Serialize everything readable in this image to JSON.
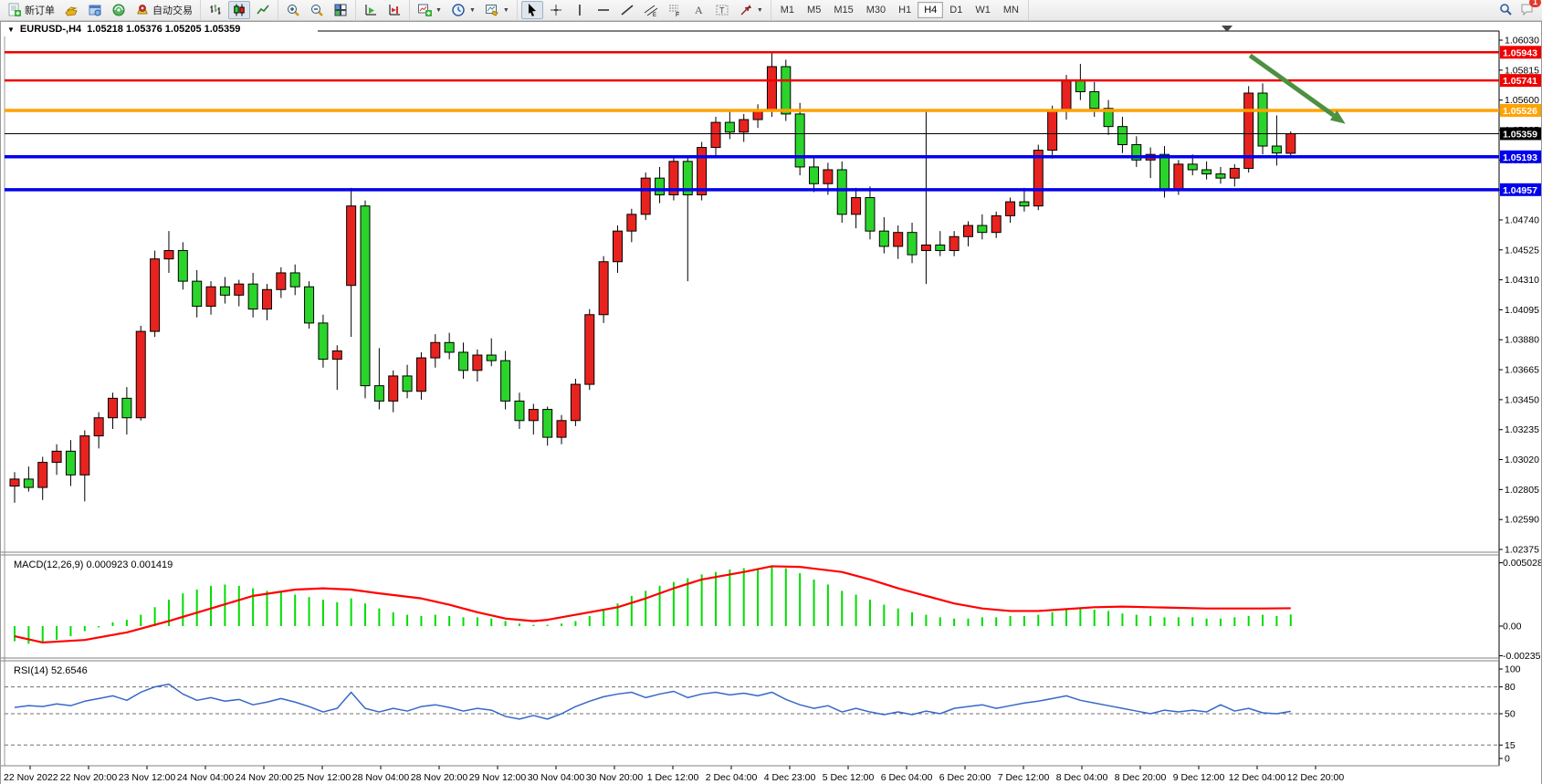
{
  "toolbar": {
    "new_order_label": "新订单",
    "autotrading_label": "自动交易",
    "left_icons": [
      "new-order-icon",
      "market-watch-icon",
      "terminal-icon",
      "navigator-icon",
      "autotrading-icon"
    ],
    "chart_type_icons": [
      "bar-chart-icon",
      "candlestick-icon",
      "line-chart-icon"
    ],
    "active_chart_type": "candlestick-icon",
    "zoom_icons": [
      "zoom-in-icon",
      "zoom-out-icon",
      "tile-windows-icon"
    ],
    "scroll_icons": [
      "auto-scroll-icon",
      "chart-shift-icon"
    ],
    "dropdown_icons": [
      "new-chart-icon",
      "period-icon",
      "template-icon"
    ],
    "draw_icons": [
      "cursor-icon",
      "crosshair-icon",
      "vertical-line-icon",
      "horizontal-line-icon",
      "trend-line-icon",
      "channel-icon",
      "fibonacci-icon",
      "text-icon",
      "text-label-icon",
      "arrows-icon"
    ],
    "active_draw_icon": "cursor-icon",
    "timeframes": [
      "M1",
      "M5",
      "M15",
      "M30",
      "H1",
      "H4",
      "D1",
      "W1",
      "MN"
    ],
    "active_timeframe": "H4",
    "notification_badge": "1"
  },
  "chart": {
    "title_symbol": "EURUSD-,H4",
    "title_ohlc": "1.05218 1.05376 1.05205 1.05359"
  },
  "chart_data": {
    "type": "candlestick",
    "symbol": "EURUSD-",
    "period": "H4",
    "bull_color": "#e8231f",
    "bear_color": "#2bd42b",
    "wick_color": "#000000",
    "current_price": "1.05359",
    "price_ticks": [
      "1.06030",
      "1.05815",
      "1.05600",
      "1.05385",
      "1.05170",
      "1.04955",
      "1.04740",
      "1.04525",
      "1.04310",
      "1.04095",
      "1.03880",
      "1.03665",
      "1.03450",
      "1.03235",
      "1.03020",
      "1.02805",
      "1.02590",
      "1.02375"
    ],
    "hlines": [
      {
        "price": 1.05943,
        "label": "1.05943",
        "color": "#f00000",
        "width": 2.5
      },
      {
        "price": 1.05741,
        "label": "1.05741",
        "color": "#f00000",
        "width": 2.5
      },
      {
        "price": 1.05526,
        "label": "1.05526",
        "color": "#ffa200",
        "width": 3.5
      },
      {
        "price": 1.05359,
        "label": "1.05359",
        "color": "#000000",
        "width": 1
      },
      {
        "price": 1.05193,
        "label": "1.05193",
        "color": "#0000ee",
        "width": 3.5
      },
      {
        "price": 1.04957,
        "label": "1.04957",
        "color": "#0000ee",
        "width": 3.5
      }
    ],
    "arrow": {
      "from_index": 88.1,
      "from_price": 1.0592,
      "to_index": 94.9,
      "to_price": 1.0543,
      "color": "#4c9141"
    },
    "candles": [
      [
        1.0283,
        1.0293,
        1.0271,
        1.0288
      ],
      [
        1.0288,
        1.0297,
        1.0279,
        1.0282
      ],
      [
        1.0282,
        1.0304,
        1.0273,
        1.03
      ],
      [
        1.03,
        1.0313,
        1.0291,
        1.0308
      ],
      [
        1.0308,
        1.0316,
        1.0283,
        1.0291
      ],
      [
        1.0291,
        1.0323,
        1.0272,
        1.0319
      ],
      [
        1.0319,
        1.0336,
        1.031,
        1.0332
      ],
      [
        1.0332,
        1.035,
        1.0324,
        1.0346
      ],
      [
        1.0346,
        1.0354,
        1.032,
        1.0332
      ],
      [
        1.0332,
        1.0398,
        1.033,
        1.0394
      ],
      [
        1.0394,
        1.0452,
        1.039,
        1.0446
      ],
      [
        1.0446,
        1.0466,
        1.0436,
        1.0452
      ],
      [
        1.0452,
        1.0458,
        1.0424,
        1.043
      ],
      [
        1.043,
        1.0438,
        1.0404,
        1.0412
      ],
      [
        1.0412,
        1.043,
        1.0406,
        1.0426
      ],
      [
        1.0426,
        1.0433,
        1.0414,
        1.042
      ],
      [
        1.042,
        1.0431,
        1.0412,
        1.0428
      ],
      [
        1.0428,
        1.0436,
        1.0404,
        1.041
      ],
      [
        1.041,
        1.0428,
        1.0402,
        1.0424
      ],
      [
        1.0424,
        1.044,
        1.0418,
        1.0436
      ],
      [
        1.0436,
        1.0442,
        1.042,
        1.0426
      ],
      [
        1.0426,
        1.043,
        1.0396,
        1.04
      ],
      [
        1.04,
        1.0406,
        1.0368,
        1.0374
      ],
      [
        1.0374,
        1.0384,
        1.0352,
        1.038
      ],
      [
        1.0427,
        1.0497,
        1.039,
        1.0484
      ],
      [
        1.0484,
        1.0488,
        1.0346,
        1.0355
      ],
      [
        1.0355,
        1.0382,
        1.0338,
        1.0344
      ],
      [
        1.0344,
        1.0366,
        1.0336,
        1.0362
      ],
      [
        1.0362,
        1.037,
        1.0346,
        1.0351
      ],
      [
        1.0351,
        1.0379,
        1.0345,
        1.0375
      ],
      [
        1.0375,
        1.0392,
        1.0368,
        1.0386
      ],
      [
        1.0386,
        1.0393,
        1.0374,
        1.0379
      ],
      [
        1.0379,
        1.0386,
        1.036,
        1.0366
      ],
      [
        1.0366,
        1.0381,
        1.0358,
        1.0377
      ],
      [
        1.0377,
        1.0389,
        1.0369,
        1.0373
      ],
      [
        1.0373,
        1.038,
        1.0338,
        1.0344
      ],
      [
        1.0344,
        1.035,
        1.0324,
        1.033
      ],
      [
        1.033,
        1.0342,
        1.032,
        1.0338
      ],
      [
        1.0338,
        1.034,
        1.0312,
        1.0318
      ],
      [
        1.0318,
        1.0334,
        1.0313,
        1.033
      ],
      [
        1.033,
        1.036,
        1.0326,
        1.0356
      ],
      [
        1.0356,
        1.041,
        1.0352,
        1.0406
      ],
      [
        1.0406,
        1.0448,
        1.04,
        1.0444
      ],
      [
        1.0444,
        1.047,
        1.0436,
        1.0466
      ],
      [
        1.0466,
        1.0482,
        1.0458,
        1.0478
      ],
      [
        1.0478,
        1.0508,
        1.0474,
        1.0504
      ],
      [
        1.0504,
        1.0512,
        1.0486,
        1.0492
      ],
      [
        1.0492,
        1.052,
        1.0488,
        1.0516
      ],
      [
        1.0516,
        1.052,
        1.043,
        1.0492
      ],
      [
        1.0492,
        1.053,
        1.0488,
        1.0526
      ],
      [
        1.0526,
        1.0548,
        1.052,
        1.0544
      ],
      [
        1.0544,
        1.0552,
        1.0532,
        1.0537
      ],
      [
        1.0537,
        1.055,
        1.053,
        1.0546
      ],
      [
        1.0546,
        1.0557,
        1.054,
        1.0553
      ],
      [
        1.0553,
        1.0595,
        1.0548,
        1.0584
      ],
      [
        1.0584,
        1.0589,
        1.0545,
        1.055
      ],
      [
        1.055,
        1.0558,
        1.0506,
        1.0512
      ],
      [
        1.0512,
        1.052,
        1.0494,
        1.05
      ],
      [
        1.05,
        1.0515,
        1.0492,
        1.051
      ],
      [
        1.051,
        1.0516,
        1.0472,
        1.0478
      ],
      [
        1.0478,
        1.0497,
        1.0468,
        1.049
      ],
      [
        1.049,
        1.0498,
        1.046,
        1.0466
      ],
      [
        1.0466,
        1.0476,
        1.045,
        1.0455
      ],
      [
        1.0455,
        1.047,
        1.0446,
        1.0465
      ],
      [
        1.0465,
        1.0472,
        1.0443,
        1.0449
      ],
      [
        1.0452,
        1.0553,
        1.0428,
        1.0456
      ],
      [
        1.0456,
        1.0466,
        1.0448,
        1.0452
      ],
      [
        1.0452,
        1.0466,
        1.0448,
        1.0462
      ],
      [
        1.0462,
        1.0473,
        1.0455,
        1.047
      ],
      [
        1.047,
        1.0478,
        1.046,
        1.0465
      ],
      [
        1.0465,
        1.048,
        1.0461,
        1.0477
      ],
      [
        1.0477,
        1.049,
        1.0472,
        1.0487
      ],
      [
        1.0487,
        1.0497,
        1.048,
        1.0484
      ],
      [
        1.0484,
        1.0528,
        1.0481,
        1.0524
      ],
      [
        1.0524,
        1.0556,
        1.0518,
        1.0552
      ],
      [
        1.0552,
        1.0578,
        1.0546,
        1.0574
      ],
      [
        1.0574,
        1.0586,
        1.056,
        1.0566
      ],
      [
        1.0566,
        1.0573,
        1.0548,
        1.0554
      ],
      [
        1.0554,
        1.056,
        1.0535,
        1.0541
      ],
      [
        1.0541,
        1.0548,
        1.0522,
        1.0528
      ],
      [
        1.0528,
        1.0534,
        1.0512,
        1.0517
      ],
      [
        1.0517,
        1.0526,
        1.0504,
        1.0521
      ],
      [
        1.0521,
        1.0527,
        1.049,
        1.0496
      ],
      [
        1.0496,
        1.0517,
        1.0492,
        1.0514
      ],
      [
        1.0514,
        1.0521,
        1.0506,
        1.051
      ],
      [
        1.051,
        1.0516,
        1.0503,
        1.0507
      ],
      [
        1.0507,
        1.0512,
        1.05,
        1.0504
      ],
      [
        1.0504,
        1.0514,
        1.0498,
        1.0511
      ],
      [
        1.0511,
        1.057,
        1.0508,
        1.0565
      ],
      [
        1.0565,
        1.0572,
        1.0521,
        1.0527
      ],
      [
        1.0527,
        1.0549,
        1.0513,
        1.0522
      ],
      [
        1.05218,
        1.05376,
        1.05205,
        1.05359
      ]
    ],
    "macd": {
      "label": "MACD(12,26,9)",
      "values_text": "0.000923 0.001419",
      "hist_color": "#00dd00",
      "signal_color": "#ff0000",
      "ticks": [
        "0.005028",
        "0.00",
        "-0.002353"
      ],
      "histogram": [
        -0.0012,
        -0.0014,
        -0.0013,
        -0.0011,
        -0.0008,
        -0.0004,
        -0.0001,
        0.0003,
        0.0005,
        0.0009,
        0.0015,
        0.0021,
        0.0026,
        0.0029,
        0.0032,
        0.0033,
        0.0032,
        0.003,
        0.0028,
        0.0027,
        0.0025,
        0.0023,
        0.0021,
        0.0019,
        0.0022,
        0.0018,
        0.0014,
        0.0011,
        0.0009,
        0.0008,
        0.0009,
        0.0008,
        0.0007,
        0.0007,
        0.0006,
        0.0004,
        0.0002,
        0.0001,
        0.0001,
        0.0002,
        0.0004,
        0.0008,
        0.0013,
        0.0018,
        0.0024,
        0.0028,
        0.0032,
        0.0035,
        0.0038,
        0.0041,
        0.0043,
        0.0045,
        0.0046,
        0.0046,
        0.0048,
        0.0046,
        0.0042,
        0.0037,
        0.0033,
        0.0028,
        0.0025,
        0.0021,
        0.0017,
        0.0014,
        0.0011,
        0.0009,
        0.0007,
        0.0006,
        0.0006,
        0.0007,
        0.0007,
        0.0008,
        0.0008,
        0.0009,
        0.0011,
        0.0013,
        0.0014,
        0.0013,
        0.0012,
        0.001,
        0.0009,
        0.0008,
        0.0007,
        0.0007,
        0.0007,
        0.0006,
        0.0006,
        0.0007,
        0.0008,
        0.0009,
        0.0008,
        0.000923
      ],
      "signal": [
        [
          0,
          -0.0008
        ],
        [
          2,
          -0.0013
        ],
        [
          5,
          -0.0011
        ],
        [
          8,
          -0.0005
        ],
        [
          11,
          0.0004
        ],
        [
          14,
          0.0014
        ],
        [
          17,
          0.0024
        ],
        [
          20,
          0.0029
        ],
        [
          22,
          0.003
        ],
        [
          24,
          0.0029
        ],
        [
          26,
          0.0026
        ],
        [
          29,
          0.0022
        ],
        [
          31,
          0.0017
        ],
        [
          33,
          0.0011
        ],
        [
          35,
          0.0006
        ],
        [
          37,
          0.0004
        ],
        [
          38,
          0.0005
        ],
        [
          40,
          0.0009
        ],
        [
          43,
          0.0015
        ],
        [
          45,
          0.0022
        ],
        [
          47,
          0.003
        ],
        [
          49,
          0.0037
        ],
        [
          52,
          0.0043
        ],
        [
          54,
          0.00475
        ],
        [
          56,
          0.0047
        ],
        [
          59,
          0.0043
        ],
        [
          61,
          0.0037
        ],
        [
          63,
          0.003
        ],
        [
          65,
          0.0024
        ],
        [
          67,
          0.0018
        ],
        [
          69,
          0.0014
        ],
        [
          71,
          0.0012
        ],
        [
          73,
          0.0012
        ],
        [
          75,
          0.00135
        ],
        [
          77,
          0.0015
        ],
        [
          79,
          0.00155
        ],
        [
          81,
          0.0015
        ],
        [
          83,
          0.00145
        ],
        [
          85,
          0.0014
        ],
        [
          87,
          0.0014
        ],
        [
          89,
          0.0014
        ],
        [
          91,
          0.001419
        ]
      ]
    },
    "rsi": {
      "label": "RSI(14)",
      "value_text": "52.6546",
      "color": "#3668c9",
      "ticks": [
        100,
        80,
        50,
        15,
        0
      ],
      "levels": [
        80,
        50,
        15
      ],
      "values": [
        57,
        59,
        58,
        61,
        59,
        64,
        67,
        70,
        65,
        74,
        80,
        83,
        72,
        65,
        68,
        64,
        66,
        60,
        63,
        67,
        63,
        58,
        52,
        56,
        74,
        56,
        52,
        56,
        53,
        58,
        60,
        57,
        53,
        56,
        54,
        47,
        44,
        48,
        44,
        50,
        58,
        64,
        69,
        72,
        74,
        68,
        72,
        75,
        68,
        72,
        74,
        71,
        73,
        70,
        74,
        66,
        60,
        56,
        59,
        52,
        56,
        52,
        49,
        52,
        49,
        53,
        50,
        56,
        58,
        60,
        56,
        59,
        62,
        64,
        67,
        70,
        65,
        62,
        59,
        56,
        53,
        50,
        54,
        52,
        54,
        52,
        60,
        53,
        56,
        51,
        50,
        52.7
      ]
    },
    "time_labels": [
      "22 Nov 2022",
      "22 Nov 20:00",
      "23 Nov 12:00",
      "24 Nov 04:00",
      "24 Nov 20:00",
      "25 Nov 12:00",
      "28 Nov 04:00",
      "28 Nov 20:00",
      "29 Nov 12:00",
      "30 Nov 04:00",
      "30 Nov 20:00",
      "1 Dec 12:00",
      "2 Dec 04:00",
      "4 Dec 23:00",
      "5 Dec 12:00",
      "6 Dec 04:00",
      "6 Dec 20:00",
      "7 Dec 12:00",
      "8 Dec 04:00",
      "8 Dec 20:00",
      "9 Dec 12:00",
      "12 Dec 04:00",
      "12 Dec 20:00"
    ]
  }
}
